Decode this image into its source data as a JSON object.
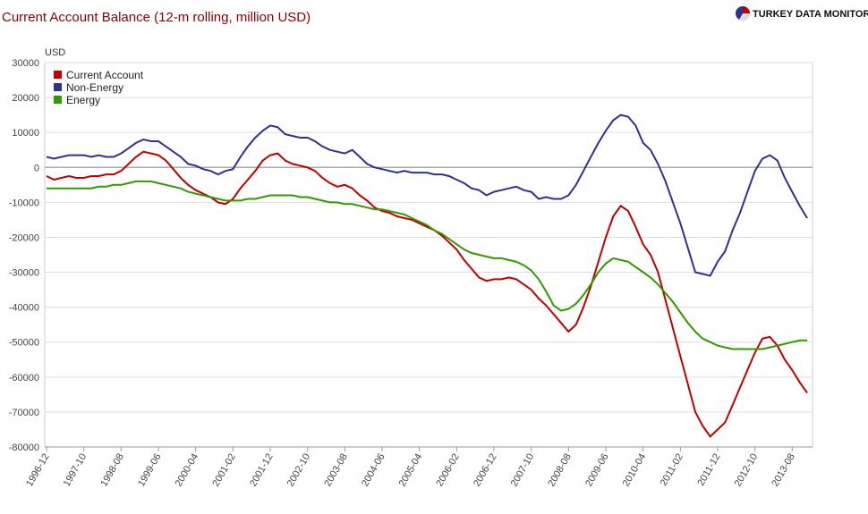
{
  "chart_data": {
    "type": "line",
    "title": "Current Account Balance (12-m rolling, million USD)",
    "logo": "TURKEY DATA MONITOR",
    "y_label": "USD",
    "grid": true,
    "legend": "top-left",
    "ylim": [
      -80000,
      30000
    ],
    "yticks": [
      -80000,
      -70000,
      -60000,
      -50000,
      -40000,
      -30000,
      -20000,
      -10000,
      0,
      10000,
      20000,
      30000
    ],
    "xticks": [
      "1996-12",
      "1997-10",
      "1998-08",
      "1999-06",
      "2000-04",
      "2001-02",
      "2001-12",
      "2002-10",
      "2003-08",
      "2004-06",
      "2005-04",
      "2006-02",
      "2006-12",
      "2007-10",
      "2008-08",
      "2009-06",
      "2010-04",
      "2011-02",
      "2011-12",
      "2012-10",
      "2013-08"
    ],
    "x": [
      "1996-12",
      "1997-02",
      "1997-04",
      "1997-06",
      "1997-08",
      "1997-10",
      "1997-12",
      "1998-02",
      "1998-04",
      "1998-06",
      "1998-08",
      "1998-10",
      "1998-12",
      "1999-02",
      "1999-04",
      "1999-06",
      "1999-08",
      "1999-10",
      "1999-12",
      "2000-02",
      "2000-04",
      "2000-06",
      "2000-08",
      "2000-10",
      "2000-12",
      "2001-02",
      "2001-04",
      "2001-06",
      "2001-08",
      "2001-10",
      "2001-12",
      "2002-02",
      "2002-04",
      "2002-06",
      "2002-08",
      "2002-10",
      "2002-12",
      "2003-02",
      "2003-04",
      "2003-06",
      "2003-08",
      "2003-10",
      "2003-12",
      "2004-02",
      "2004-04",
      "2004-06",
      "2004-08",
      "2004-10",
      "2004-12",
      "2005-02",
      "2005-04",
      "2005-06",
      "2005-08",
      "2005-10",
      "2005-12",
      "2006-02",
      "2006-04",
      "2006-06",
      "2006-08",
      "2006-10",
      "2006-12",
      "2007-02",
      "2007-04",
      "2007-06",
      "2007-08",
      "2007-10",
      "2007-12",
      "2008-02",
      "2008-04",
      "2008-06",
      "2008-08",
      "2008-10",
      "2008-12",
      "2009-02",
      "2009-04",
      "2009-06",
      "2009-08",
      "2009-10",
      "2009-12",
      "2010-02",
      "2010-04",
      "2010-06",
      "2010-08",
      "2010-10",
      "2010-12",
      "2011-02",
      "2011-04",
      "2011-06",
      "2011-08",
      "2011-10",
      "2011-12",
      "2012-02",
      "2012-04",
      "2012-06",
      "2012-08",
      "2012-10",
      "2012-12",
      "2013-02",
      "2013-04",
      "2013-06",
      "2013-08",
      "2013-10",
      "2013-12"
    ],
    "series": [
      {
        "name": "Current Account",
        "color": "#c00000",
        "values": [
          -2500,
          -3500,
          -3000,
          -2500,
          -3000,
          -3000,
          -2500,
          -2500,
          -2000,
          -2000,
          -1000,
          1000,
          3000,
          4500,
          4000,
          3500,
          2000,
          -500,
          -3000,
          -5000,
          -6500,
          -7500,
          -8500,
          -10000,
          -10500,
          -9000,
          -6000,
          -3500,
          -1000,
          2000,
          3500,
          4000,
          2000,
          1000,
          500,
          0,
          -1000,
          -3000,
          -4500,
          -5500,
          -5000,
          -6000,
          -8000,
          -9500,
          -11500,
          -12500,
          -13000,
          -14000,
          -14500,
          -15000,
          -16000,
          -17000,
          -18000,
          -19500,
          -21500,
          -23500,
          -26500,
          -29000,
          -31500,
          -32500,
          -32000,
          -32000,
          -31500,
          -32000,
          -33500,
          -35000,
          -37500,
          -39500,
          -42000,
          -44500,
          -47000,
          -45000,
          -40000,
          -34000,
          -27000,
          -20000,
          -14000,
          -11000,
          -12500,
          -17000,
          -22000,
          -25000,
          -30000,
          -38000,
          -46000,
          -54000,
          -62000,
          -70000,
          -74000,
          -77000,
          -75000,
          -73000,
          -68000,
          -63000,
          -58000,
          -53000,
          -49000,
          -48500,
          -51000,
          -55000,
          -58000,
          -61500,
          -64500
        ]
      },
      {
        "name": "Non-Energy",
        "color": "#2e3192",
        "values": [
          3000,
          2500,
          3000,
          3500,
          3500,
          3500,
          3000,
          3500,
          3000,
          3000,
          4000,
          5500,
          7000,
          8000,
          7500,
          7500,
          6000,
          4500,
          3000,
          1000,
          500,
          -500,
          -1000,
          -2000,
          -1000,
          -500,
          3000,
          6000,
          8500,
          10500,
          12000,
          11500,
          9500,
          9000,
          8500,
          8500,
          7500,
          6000,
          5000,
          4500,
          4000,
          5000,
          3000,
          1000,
          0,
          -500,
          -1000,
          -1500,
          -1000,
          -1500,
          -1500,
          -1500,
          -2000,
          -2000,
          -2500,
          -3500,
          -4500,
          -6000,
          -6500,
          -8000,
          -7000,
          -6500,
          -6000,
          -5500,
          -6500,
          -7000,
          -9000,
          -8500,
          -9000,
          -9000,
          -8000,
          -5000,
          -1000,
          3000,
          7000,
          10500,
          13500,
          15000,
          14500,
          12000,
          7000,
          5000,
          1000,
          -4000,
          -10000,
          -16000,
          -23000,
          -30000,
          -30500,
          -31000,
          -27000,
          -24000,
          -18000,
          -13000,
          -7000,
          -1000,
          2500,
          3500,
          2000,
          -3000,
          -7000,
          -11000,
          -14500
        ]
      },
      {
        "name": "Energy",
        "color": "#339900",
        "values": [
          -6000,
          -6000,
          -6000,
          -6000,
          -6000,
          -6000,
          -6000,
          -5500,
          -5500,
          -5000,
          -5000,
          -4500,
          -4000,
          -4000,
          -4000,
          -4500,
          -5000,
          -5500,
          -6000,
          -7000,
          -7500,
          -8000,
          -8500,
          -9000,
          -9500,
          -9500,
          -9500,
          -9000,
          -9000,
          -8500,
          -8000,
          -8000,
          -8000,
          -8000,
          -8500,
          -8500,
          -9000,
          -9500,
          -10000,
          -10000,
          -10500,
          -10500,
          -11000,
          -11500,
          -12000,
          -12000,
          -12500,
          -13000,
          -13500,
          -14500,
          -15500,
          -16500,
          -18000,
          -19000,
          -20500,
          -22000,
          -23500,
          -24500,
          -25000,
          -25500,
          -26000,
          -26000,
          -26500,
          -27000,
          -28000,
          -29500,
          -32000,
          -35500,
          -39500,
          -41000,
          -40500,
          -39000,
          -36500,
          -33500,
          -30000,
          -27500,
          -26000,
          -26500,
          -27000,
          -28500,
          -30000,
          -31500,
          -33500,
          -36000,
          -38500,
          -41500,
          -44500,
          -47000,
          -49000,
          -50000,
          -51000,
          -51500,
          -52000,
          -52000,
          -52000,
          -52000,
          -52000,
          -51500,
          -51000,
          -50500,
          -50000,
          -49500,
          -49500
        ]
      }
    ]
  }
}
